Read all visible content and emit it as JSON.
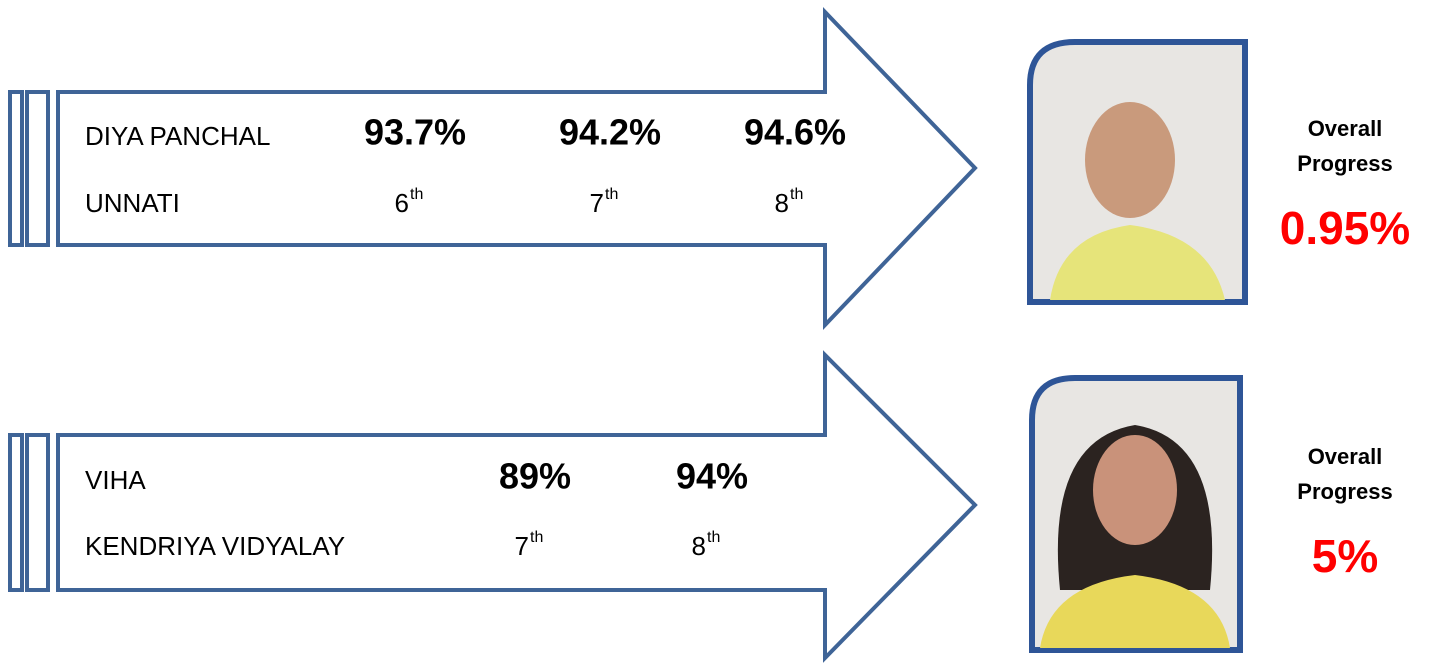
{
  "rows": [
    {
      "name": "DIYA PANCHAL",
      "school": "UNNATI",
      "scores": [
        {
          "value": "93.7%",
          "grade": "6",
          "suffix": "th"
        },
        {
          "value": "94.2%",
          "grade": "7",
          "suffix": "th"
        },
        {
          "value": "94.6%",
          "grade": "8",
          "suffix": "th"
        }
      ],
      "progress_label": [
        "Overall",
        "Progress"
      ],
      "progress": "0.95%"
    },
    {
      "name": "VIHA",
      "school": "KENDRIYA VIDYALAY",
      "scores": [
        {
          "value": "89%",
          "grade": "7",
          "suffix": "th"
        },
        {
          "value": "94%",
          "grade": "8",
          "suffix": "th"
        }
      ],
      "progress_label": [
        "Overall",
        "Progress"
      ],
      "progress": "5%"
    }
  ]
}
